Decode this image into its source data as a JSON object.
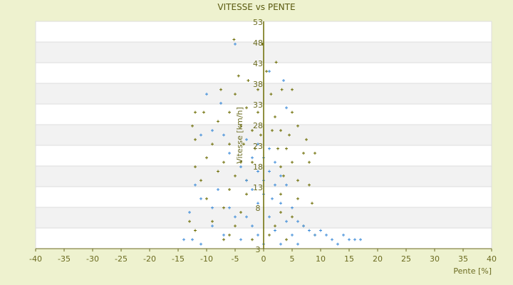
{
  "chart_data": {
    "type": "scatter",
    "title": "VITESSE vs PENTE",
    "xlabel": "Pente [%]",
    "ylabel": "Vitesse [km/h]",
    "xlim": [
      -40,
      40
    ],
    "ylim": [
      3,
      53
    ],
    "xticks": [
      -40,
      -35,
      -30,
      -25,
      -20,
      -15,
      -10,
      -5,
      0,
      5,
      10,
      15,
      20,
      25,
      30,
      35,
      40
    ],
    "yticks": [
      53,
      48,
      43,
      38,
      33,
      28,
      23,
      18,
      13,
      8,
      3
    ],
    "grid": true,
    "series": [
      {
        "name": "olive",
        "color": "#6b6b00",
        "points": [
          [
            -5.2,
            49
          ],
          [
            -0.2,
            48
          ],
          [
            2.2,
            44
          ],
          [
            -4.4,
            41
          ],
          [
            -2.7,
            40
          ],
          [
            0.5,
            42
          ],
          [
            -7.5,
            38
          ],
          [
            -5,
            37
          ],
          [
            -1,
            38
          ],
          [
            1.3,
            37
          ],
          [
            3.2,
            38
          ],
          [
            5,
            38
          ],
          [
            -12,
            33
          ],
          [
            -10.5,
            33
          ],
          [
            -6,
            33
          ],
          [
            -3,
            34
          ],
          [
            -1,
            33
          ],
          [
            2,
            32
          ],
          [
            5,
            33
          ],
          [
            6,
            30
          ],
          [
            -12.5,
            30
          ],
          [
            -8,
            31
          ],
          [
            -4,
            30
          ],
          [
            -2,
            29
          ],
          [
            -0.5,
            28
          ],
          [
            1.5,
            29
          ],
          [
            3,
            29
          ],
          [
            4.5,
            28
          ],
          [
            7.5,
            27
          ],
          [
            -12,
            27
          ],
          [
            -9,
            26
          ],
          [
            -6,
            26
          ],
          [
            -3.5,
            26
          ],
          [
            -1.5,
            25
          ],
          [
            2.5,
            25
          ],
          [
            4,
            25
          ],
          [
            7,
            24
          ],
          [
            9,
            24
          ],
          [
            -10,
            23
          ],
          [
            -7,
            22
          ],
          [
            -4,
            22
          ],
          [
            -2,
            22
          ],
          [
            3,
            21
          ],
          [
            5,
            22
          ],
          [
            8,
            22
          ],
          [
            -12,
            21
          ],
          [
            -8,
            20
          ],
          [
            -5,
            19
          ],
          [
            -3,
            18
          ],
          [
            3.5,
            19
          ],
          [
            6,
            18
          ],
          [
            8,
            17
          ],
          [
            -11,
            18
          ],
          [
            -6,
            16
          ],
          [
            -3,
            15
          ],
          [
            3,
            15
          ],
          [
            6,
            14
          ],
          [
            8.5,
            13
          ],
          [
            -10,
            14
          ],
          [
            -7,
            12
          ],
          [
            -4,
            11
          ],
          [
            3,
            11
          ],
          [
            5,
            10
          ],
          [
            -13,
            9
          ],
          [
            -9,
            9
          ],
          [
            -5,
            8
          ],
          [
            2,
            8
          ],
          [
            7,
            8
          ],
          [
            -12,
            7
          ],
          [
            -6,
            6
          ],
          [
            1,
            6
          ],
          [
            4,
            5
          ],
          [
            9,
            6
          ],
          [
            -7,
            5
          ],
          [
            -2,
            5
          ]
        ]
      },
      {
        "name": "blue",
        "color": "#3a8ad8",
        "points": [
          [
            -5,
            48
          ],
          [
            1,
            42
          ],
          [
            3.5,
            40
          ],
          [
            -10,
            37
          ],
          [
            -7.5,
            35
          ],
          [
            4,
            34
          ],
          [
            -9,
            29
          ],
          [
            -11,
            28
          ],
          [
            -7,
            28
          ],
          [
            -3,
            27
          ],
          [
            -1,
            26
          ],
          [
            1,
            25
          ],
          [
            -6,
            24
          ],
          [
            -2,
            23
          ],
          [
            0,
            23
          ],
          [
            2,
            22
          ],
          [
            -4,
            21
          ],
          [
            -1,
            20
          ],
          [
            1,
            20
          ],
          [
            3,
            19
          ],
          [
            -3,
            18
          ],
          [
            0,
            18
          ],
          [
            2,
            17
          ],
          [
            4,
            17
          ],
          [
            -2,
            16
          ],
          [
            0,
            15
          ],
          [
            1.5,
            14
          ],
          [
            -1,
            13
          ],
          [
            3,
            13
          ],
          [
            5,
            12
          ],
          [
            -12,
            17
          ],
          [
            -11,
            14
          ],
          [
            -8,
            16
          ],
          [
            -9,
            12
          ],
          [
            -6,
            12
          ],
          [
            -5,
            10
          ],
          [
            -3,
            10
          ],
          [
            1,
            10
          ],
          [
            4,
            9
          ],
          [
            6,
            9
          ],
          [
            7,
            8
          ],
          [
            8,
            7
          ],
          [
            9,
            6
          ],
          [
            10,
            7
          ],
          [
            11,
            6
          ],
          [
            12,
            5
          ],
          [
            14,
            6
          ],
          [
            15,
            5
          ],
          [
            16,
            5
          ],
          [
            17,
            5
          ],
          [
            13,
            4
          ],
          [
            -14,
            5
          ],
          [
            -12.5,
            5
          ],
          [
            -11,
            4
          ],
          [
            -7,
            6
          ],
          [
            -4,
            5
          ],
          [
            0,
            4
          ],
          [
            3,
            4
          ],
          [
            6,
            4
          ],
          [
            -9,
            8
          ],
          [
            -13,
            11
          ],
          [
            -2,
            8
          ],
          [
            2,
            7
          ],
          [
            -1,
            6
          ],
          [
            5,
            6
          ]
        ]
      }
    ]
  }
}
